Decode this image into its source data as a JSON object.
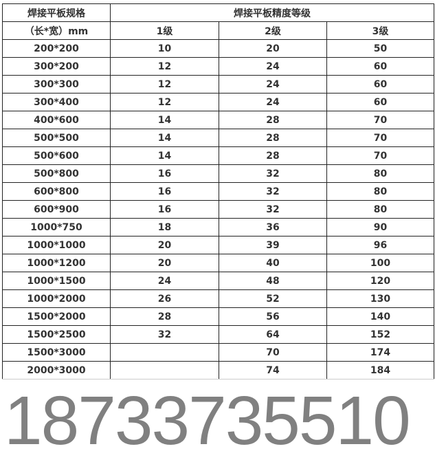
{
  "header": {
    "spec_title": "焊接平板规格",
    "grade_title": "焊接平板精度等级",
    "spec_unit": "（长*宽）mm",
    "grades": [
      "1级",
      "2级",
      "3级"
    ]
  },
  "rows": [
    [
      "200*200",
      "10",
      "20",
      "50"
    ],
    [
      "300*200",
      "12",
      "24",
      "60"
    ],
    [
      "300*300",
      "12",
      "24",
      "60"
    ],
    [
      "300*400",
      "12",
      "24",
      "60"
    ],
    [
      "400*600",
      "14",
      "28",
      "70"
    ],
    [
      "500*500",
      "14",
      "28",
      "70"
    ],
    [
      "500*600",
      "14",
      "28",
      "70"
    ],
    [
      "500*800",
      "16",
      "32",
      "80"
    ],
    [
      "600*800",
      "16",
      "32",
      "80"
    ],
    [
      "600*900",
      "16",
      "32",
      "80"
    ],
    [
      "1000*750",
      "18",
      "36",
      "90"
    ],
    [
      "1000*1000",
      "20",
      "39",
      "96"
    ],
    [
      "1000*1200",
      "20",
      "40",
      "100"
    ],
    [
      "1000*1500",
      "24",
      "48",
      "120"
    ],
    [
      "1000*2000",
      "26",
      "52",
      "130"
    ],
    [
      "1500*2000",
      "28",
      "56",
      "140"
    ],
    [
      "1500*2500",
      "32",
      "64",
      "152"
    ],
    [
      "1500*3000",
      "",
      "70",
      "174"
    ],
    [
      "2000*3000",
      "",
      "74",
      "184"
    ]
  ],
  "watermark": "18733735510"
}
